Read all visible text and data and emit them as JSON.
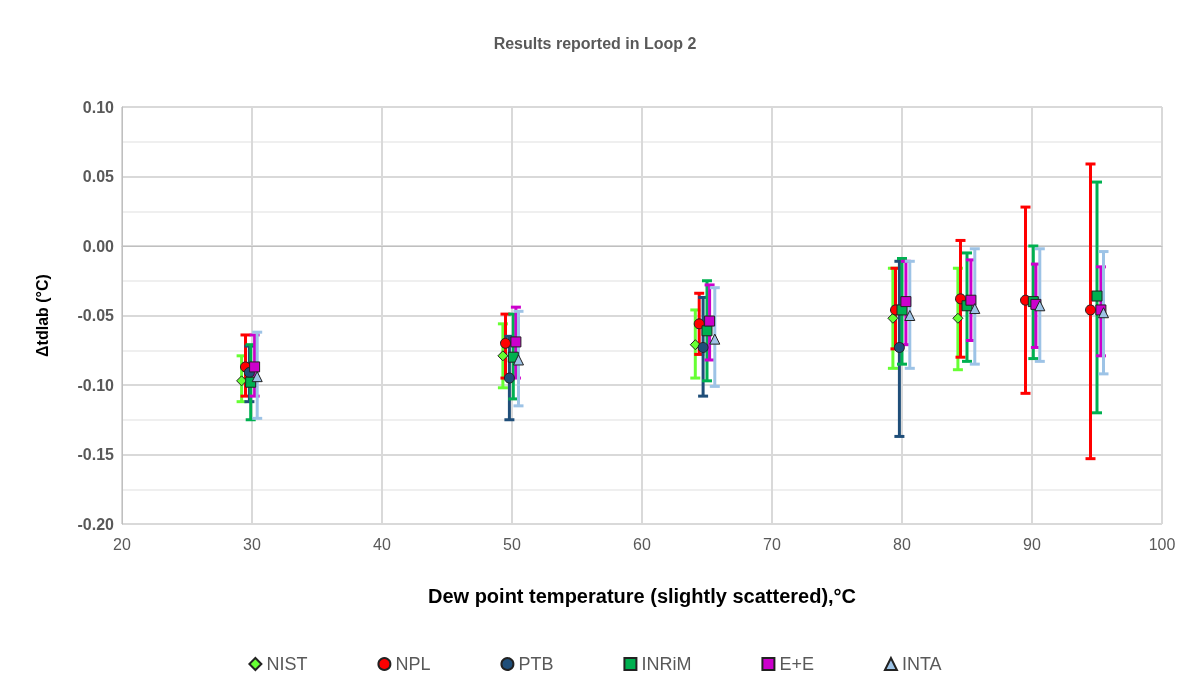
{
  "chart_data": {
    "type": "scatter",
    "title": "Results reported in Loop 2",
    "xlabel": "Dew point temperature (slightly scattered),°C",
    "ylabel": "Δtdlab (°C)",
    "xlim": [
      20,
      100
    ],
    "xticks": [
      20,
      30,
      40,
      50,
      60,
      70,
      80,
      90,
      100
    ],
    "ylim": [
      -0.2,
      0.1
    ],
    "yticks": [
      {
        "value": -0.2,
        "label": "-0.20"
      },
      {
        "value": -0.15,
        "label": "-0.15"
      },
      {
        "value": -0.1,
        "label": "-0.10"
      },
      {
        "value": -0.05,
        "label": "-0.05"
      },
      {
        "value": 0,
        "label": "0.00"
      },
      {
        "value": 0.05,
        "label": "0.05"
      },
      {
        "value": 0.1,
        "label": "0.10"
      }
    ],
    "grid": true,
    "legend": "bottom",
    "series": [
      {
        "name": "NIST",
        "color": "#66ff33",
        "marker": "diamond",
        "x": [
          29.2,
          49.3,
          64.1,
          79.3,
          84.3
        ],
        "values": [
          -0.097,
          -0.079,
          -0.071,
          -0.052,
          -0.052
        ],
        "errors": [
          [
            -0.112,
            -0.079
          ],
          [
            -0.102,
            -0.056
          ],
          [
            -0.095,
            -0.046
          ],
          [
            -0.088,
            -0.016
          ],
          [
            -0.089,
            -0.016
          ]
        ]
      },
      {
        "name": "NPL",
        "color": "#ff0000",
        "marker": "circle",
        "x": [
          29.5,
          49.5,
          64.4,
          79.5,
          84.5,
          89.5,
          94.5
        ],
        "values": [
          -0.087,
          -0.07,
          -0.056,
          -0.046,
          -0.038,
          -0.039,
          -0.046
        ],
        "errors": [
          [
            -0.108,
            -0.064
          ],
          [
            -0.095,
            -0.049
          ],
          [
            -0.078,
            -0.034
          ],
          [
            -0.074,
            -0.016
          ],
          [
            -0.08,
            0.004
          ],
          [
            -0.106,
            0.028
          ],
          [
            -0.153,
            0.059
          ]
        ]
      },
      {
        "name": "PTB",
        "color": "#1f4e79",
        "marker": "circle",
        "x": [
          29.8,
          49.8,
          64.7,
          79.8
        ],
        "values": [
          -0.091,
          -0.095,
          -0.073,
          -0.073
        ],
        "errors": [
          [
            -0.112,
            -0.072
          ],
          [
            -0.125,
            -0.065
          ],
          [
            -0.108,
            -0.037
          ],
          [
            -0.137,
            -0.011
          ]
        ]
      },
      {
        "name": "INRiM",
        "color": "#00b050",
        "marker": "square",
        "x": [
          29.9,
          50.1,
          65.0,
          80.0,
          85.0,
          90.1,
          95.0
        ],
        "values": [
          -0.098,
          -0.08,
          -0.061,
          -0.046,
          -0.043,
          -0.04,
          -0.036
        ],
        "errors": [
          [
            -0.125,
            -0.071
          ],
          [
            -0.11,
            -0.049
          ],
          [
            -0.097,
            -0.025
          ],
          [
            -0.085,
            -0.009
          ],
          [
            -0.083,
            -0.005
          ],
          [
            -0.081,
            0.0
          ],
          [
            -0.12,
            0.046
          ]
        ]
      },
      {
        "name": "E+E",
        "color": "#cc00cc",
        "marker": "square",
        "x": [
          30.2,
          50.3,
          65.2,
          80.3,
          85.3,
          90.3,
          95.3
        ],
        "values": [
          -0.087,
          -0.069,
          -0.054,
          -0.04,
          -0.039,
          -0.042,
          -0.046
        ],
        "errors": [
          [
            -0.108,
            -0.064
          ],
          [
            -0.095,
            -0.044
          ],
          [
            -0.082,
            -0.028
          ],
          [
            -0.071,
            -0.011
          ],
          [
            -0.068,
            -0.01
          ],
          [
            -0.073,
            -0.013
          ],
          [
            -0.079,
            -0.015
          ]
        ]
      },
      {
        "name": "INTA",
        "color": "#9dc3e6",
        "marker": "triangle",
        "x": [
          30.4,
          50.5,
          65.6,
          80.6,
          85.6,
          90.6,
          95.5
        ],
        "values": [
          -0.094,
          -0.082,
          -0.067,
          -0.05,
          -0.045,
          -0.043,
          -0.048
        ],
        "errors": [
          [
            -0.124,
            -0.062
          ],
          [
            -0.115,
            -0.047
          ],
          [
            -0.101,
            -0.03
          ],
          [
            -0.088,
            -0.011
          ],
          [
            -0.085,
            -0.002
          ],
          [
            -0.083,
            -0.002
          ],
          [
            -0.092,
            -0.004
          ]
        ]
      }
    ]
  }
}
